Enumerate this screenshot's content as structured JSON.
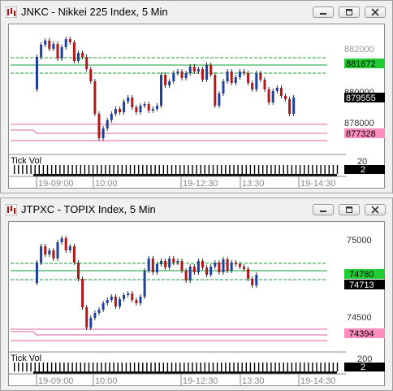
{
  "window1": {
    "title": "JNKC - Nikkei 225 Index, 5 Min",
    "y_labels": [
      "882000",
      "880000",
      "878000"
    ],
    "badge_green": "881672",
    "badge_black": "879555",
    "badge_pink": "877328",
    "tick_label": "Tick Vol",
    "vol_value": "20",
    "vol_badge": "2",
    "time_labels": [
      "19-09:00",
      "10:00",
      "19-12:30",
      "13:30",
      "19-14:30"
    ]
  },
  "window2": {
    "title": "JTPXC - TOPIX Index, 5 Min",
    "y_labels": [
      "75000",
      "74500"
    ],
    "badge_green": "74780",
    "badge_black": "74713",
    "badge_pink": "74394",
    "tick_label": "Tick Vol",
    "vol_value": "200",
    "vol_badge": "2",
    "time_labels": [
      "19-09:00",
      "10:00",
      "19-12:30",
      "13:30",
      "19-14:30"
    ]
  },
  "colors": {
    "up": "#1f3fa0",
    "down": "#b01818",
    "support_green": "#10a030",
    "pink_line": "#e060a0",
    "badge_green": "#22cc33",
    "badge_pink": "#ff8fbf"
  },
  "icons": [
    "app-icon",
    "minimize-icon",
    "restore-icon",
    "close-icon"
  ]
}
